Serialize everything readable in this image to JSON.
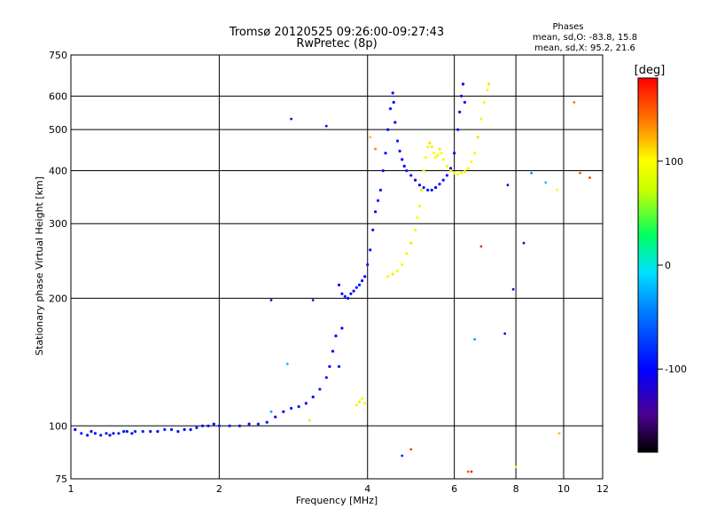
{
  "chart_data": {
    "type": "scatter",
    "title": "Tromsø 20120525 09:26:00-09:27:43",
    "subtitle": "RwPretec (8p)",
    "stats": {
      "heading": "Phases",
      "line1": "mean, sd,O: -83.8, 15.8",
      "line2": "mean, sd,X:  95.2, 21.6"
    },
    "xlabel": "Frequency [MHz]",
    "ylabel": "Stationary phase Virtual Height [km]",
    "x_scale": "log",
    "y_scale": "log",
    "xlim": [
      1,
      12
    ],
    "ylim": [
      75,
      750
    ],
    "x_ticks": [
      1,
      2,
      4,
      6,
      8,
      10,
      12
    ],
    "y_ticks": [
      75,
      100,
      200,
      300,
      400,
      500,
      600,
      750
    ],
    "grid": true,
    "colorbar": {
      "label": "[deg]",
      "range": [
        -180,
        180
      ],
      "ticks": [
        100,
        0,
        -100
      ]
    },
    "series": [
      {
        "trace": "O",
        "phase": -95,
        "points": [
          [
            1.02,
            98
          ],
          [
            1.05,
            96
          ],
          [
            1.08,
            95
          ],
          [
            1.1,
            97
          ],
          [
            1.12,
            96
          ],
          [
            1.15,
            95
          ],
          [
            1.18,
            96
          ],
          [
            1.2,
            95
          ],
          [
            1.22,
            96
          ],
          [
            1.25,
            96
          ],
          [
            1.28,
            97
          ],
          [
            1.3,
            97
          ],
          [
            1.33,
            96
          ],
          [
            1.35,
            97
          ],
          [
            1.4,
            97
          ],
          [
            1.45,
            97
          ],
          [
            1.5,
            97
          ],
          [
            1.55,
            98
          ],
          [
            1.6,
            98
          ],
          [
            1.65,
            97
          ],
          [
            1.7,
            98
          ],
          [
            1.75,
            98
          ],
          [
            1.8,
            99
          ],
          [
            1.85,
            100
          ],
          [
            1.9,
            100
          ],
          [
            1.95,
            101
          ],
          [
            2.0,
            100
          ],
          [
            2.1,
            100
          ],
          [
            2.2,
            100
          ],
          [
            2.3,
            101
          ],
          [
            2.4,
            101
          ],
          [
            2.5,
            102
          ],
          [
            2.6,
            105
          ],
          [
            2.7,
            108
          ],
          [
            2.8,
            110
          ],
          [
            2.9,
            111
          ],
          [
            3.0,
            113
          ],
          [
            3.1,
            117
          ],
          [
            3.2,
            122
          ],
          [
            3.3,
            130
          ],
          [
            3.35,
            138
          ],
          [
            3.4,
            150
          ],
          [
            3.45,
            163
          ],
          [
            3.5,
            138
          ],
          [
            3.55,
            170
          ],
          [
            3.5,
            215
          ],
          [
            3.55,
            205
          ],
          [
            3.6,
            202
          ],
          [
            3.65,
            200
          ],
          [
            3.7,
            205
          ],
          [
            3.75,
            208
          ],
          [
            3.8,
            212
          ],
          [
            3.85,
            215
          ],
          [
            3.9,
            220
          ],
          [
            3.95,
            225
          ],
          [
            4.0,
            240
          ],
          [
            4.05,
            260
          ],
          [
            4.1,
            290
          ],
          [
            4.15,
            320
          ],
          [
            4.2,
            340
          ],
          [
            4.25,
            360
          ],
          [
            4.3,
            400
          ],
          [
            4.35,
            440
          ],
          [
            4.4,
            500
          ],
          [
            4.45,
            560
          ],
          [
            4.5,
            610
          ],
          [
            4.52,
            580
          ],
          [
            4.55,
            520
          ],
          [
            4.6,
            470
          ],
          [
            4.65,
            445
          ],
          [
            4.7,
            425
          ],
          [
            4.75,
            410
          ],
          [
            4.8,
            400
          ],
          [
            4.9,
            390
          ],
          [
            5.0,
            380
          ],
          [
            5.1,
            370
          ],
          [
            5.2,
            365
          ],
          [
            5.3,
            360
          ],
          [
            5.4,
            360
          ],
          [
            5.5,
            365
          ],
          [
            5.6,
            372
          ],
          [
            5.7,
            380
          ],
          [
            5.8,
            390
          ],
          [
            5.9,
            405
          ],
          [
            6.0,
            440
          ],
          [
            6.1,
            500
          ],
          [
            6.15,
            550
          ],
          [
            6.2,
            600
          ],
          [
            6.25,
            640
          ],
          [
            6.3,
            580
          ]
        ]
      },
      {
        "trace": "X",
        "phase": 100,
        "points": [
          [
            3.8,
            112
          ],
          [
            3.85,
            114
          ],
          [
            3.9,
            116
          ],
          [
            3.95,
            113
          ],
          [
            4.4,
            225
          ],
          [
            4.5,
            228
          ],
          [
            4.6,
            232
          ],
          [
            4.7,
            240
          ],
          [
            4.8,
            255
          ],
          [
            4.9,
            270
          ],
          [
            5.0,
            290
          ],
          [
            5.05,
            310
          ],
          [
            5.1,
            330
          ],
          [
            5.15,
            360
          ],
          [
            5.2,
            400
          ],
          [
            5.25,
            430
          ],
          [
            5.3,
            455
          ],
          [
            5.35,
            465
          ],
          [
            5.4,
            455
          ],
          [
            5.45,
            440
          ],
          [
            5.5,
            430
          ],
          [
            5.55,
            435
          ],
          [
            5.6,
            450
          ],
          [
            5.65,
            440
          ],
          [
            5.7,
            425
          ],
          [
            5.8,
            410
          ],
          [
            5.9,
            400
          ],
          [
            6.0,
            395
          ],
          [
            6.1,
            392
          ],
          [
            6.2,
            395
          ],
          [
            6.3,
            398
          ],
          [
            6.4,
            405
          ],
          [
            6.5,
            420
          ],
          [
            6.6,
            440
          ],
          [
            6.7,
            480
          ],
          [
            6.8,
            530
          ],
          [
            6.9,
            580
          ],
          [
            7.0,
            620
          ],
          [
            7.05,
            640
          ]
        ]
      }
    ],
    "outliers": [
      [
        2.55,
        198,
        -110
      ],
      [
        2.8,
        530,
        -110
      ],
      [
        3.3,
        510,
        -100
      ],
      [
        3.1,
        198,
        -90
      ],
      [
        2.75,
        140,
        -20
      ],
      [
        2.55,
        108,
        -30
      ],
      [
        3.05,
        103,
        110
      ],
      [
        4.05,
        480,
        120
      ],
      [
        4.15,
        450,
        140
      ],
      [
        4.9,
        88,
        160
      ],
      [
        4.7,
        85,
        -90
      ],
      [
        6.4,
        78,
        150
      ],
      [
        6.6,
        160,
        -30
      ],
      [
        6.8,
        265,
        170
      ],
      [
        7.6,
        165,
        -100
      ],
      [
        7.7,
        370,
        -100
      ],
      [
        7.9,
        210,
        -120
      ],
      [
        8.3,
        270,
        -120
      ],
      [
        8.6,
        395,
        -40
      ],
      [
        9.2,
        375,
        -20
      ],
      [
        9.7,
        360,
        90
      ],
      [
        10.5,
        580,
        140
      ],
      [
        10.8,
        395,
        150
      ],
      [
        11.3,
        385,
        160
      ],
      [
        8.0,
        80,
        90
      ],
      [
        9.8,
        96,
        120
      ],
      [
        6.5,
        78,
        170
      ]
    ]
  }
}
